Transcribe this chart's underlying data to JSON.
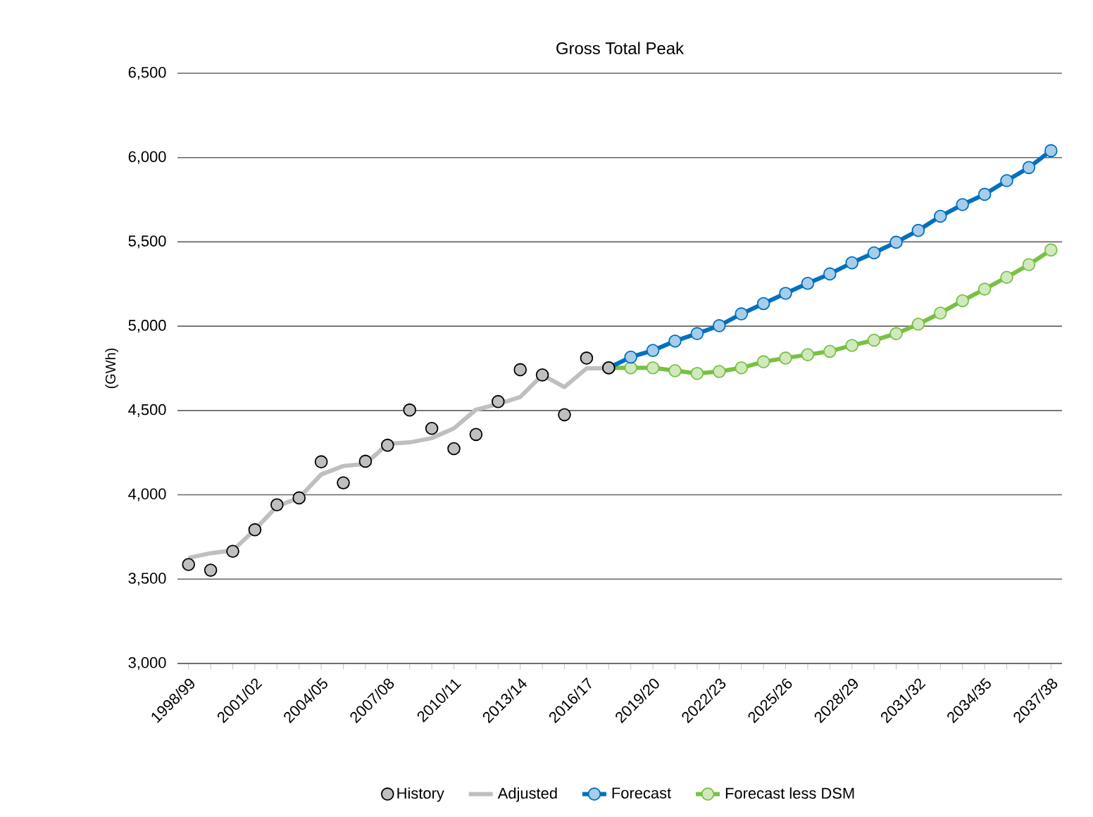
{
  "chart_data": {
    "type": "line",
    "title": "Gross Total Peak",
    "ylabel": "(GWh)",
    "categories": [
      "1998/99",
      null,
      null,
      "2001/02",
      null,
      null,
      "2004/05",
      null,
      null,
      "2007/08",
      null,
      null,
      "2010/11",
      null,
      null,
      "2013/14",
      null,
      null,
      "2016/17",
      null,
      null,
      "2019/20",
      null,
      null,
      "2022/23",
      null,
      null,
      "2025/26",
      null,
      null,
      "2028/29",
      null,
      null,
      "2031/32",
      null,
      null,
      "2034/35",
      null,
      null,
      "2037/38"
    ],
    "ylim": [
      3000,
      6500
    ],
    "yticks": [
      {
        "value": 3000,
        "label": "3,000"
      },
      {
        "value": 3500,
        "label": "3,500"
      },
      {
        "value": 4000,
        "label": "4,000"
      },
      {
        "value": 4500,
        "label": "4,500"
      },
      {
        "value": 5000,
        "label": "5,000"
      },
      {
        "value": 5500,
        "label": "5,500"
      },
      {
        "value": 6000,
        "label": "6,000"
      },
      {
        "value": 6500,
        "label": "6,500"
      }
    ],
    "grid": "y",
    "legend": "bottom",
    "series": [
      {
        "name": "History",
        "type": "scatter",
        "marker": "circle",
        "color": "#bfbfbf",
        "values": [
          3587,
          3553,
          3665,
          3793,
          3941,
          3982,
          4196,
          4071,
          4199,
          4294,
          4503,
          4394,
          4274,
          4358,
          4553,
          4742,
          4711,
          4475,
          4811,
          4753,
          null,
          null,
          null,
          null,
          null,
          null,
          null,
          null,
          null,
          null,
          null,
          null,
          null,
          null,
          null,
          null,
          null,
          null,
          null,
          null
        ]
      },
      {
        "name": "Adjusted",
        "marker": "none",
        "color": "#bfbfbf",
        "values": [
          3626,
          3654,
          3670,
          3793,
          3932,
          3982,
          4121,
          4171,
          4183,
          4302,
          4311,
          4336,
          4394,
          4505,
          4538,
          4580,
          4711,
          4639,
          4750,
          4750,
          null,
          null,
          null,
          null,
          null,
          null,
          null,
          null,
          null,
          null,
          null,
          null,
          null,
          null,
          null,
          null,
          null,
          null,
          null,
          null
        ]
      },
      {
        "name": "Forecast",
        "marker": "circle",
        "color": "#0070c0",
        "values": [
          null,
          null,
          null,
          null,
          null,
          null,
          null,
          null,
          null,
          null,
          null,
          null,
          null,
          null,
          null,
          null,
          null,
          null,
          null,
          4753,
          4817,
          4856,
          4912,
          4956,
          5003,
          5073,
          5134,
          5195,
          5254,
          5310,
          5376,
          5435,
          5498,
          5568,
          5652,
          5721,
          5782,
          5863,
          5941,
          6041
        ]
      },
      {
        "name": "Forecast less DSM",
        "marker": "circle",
        "color": "#7ac143",
        "values": [
          null,
          null,
          null,
          null,
          null,
          null,
          null,
          null,
          null,
          null,
          null,
          null,
          null,
          null,
          null,
          null,
          null,
          null,
          null,
          4753,
          4753,
          4753,
          4736,
          4720,
          4731,
          4753,
          4789,
          4811,
          4831,
          4851,
          4886,
          4917,
          4956,
          5012,
          5078,
          5151,
          5220,
          5290,
          5365,
          5452
        ]
      }
    ]
  }
}
